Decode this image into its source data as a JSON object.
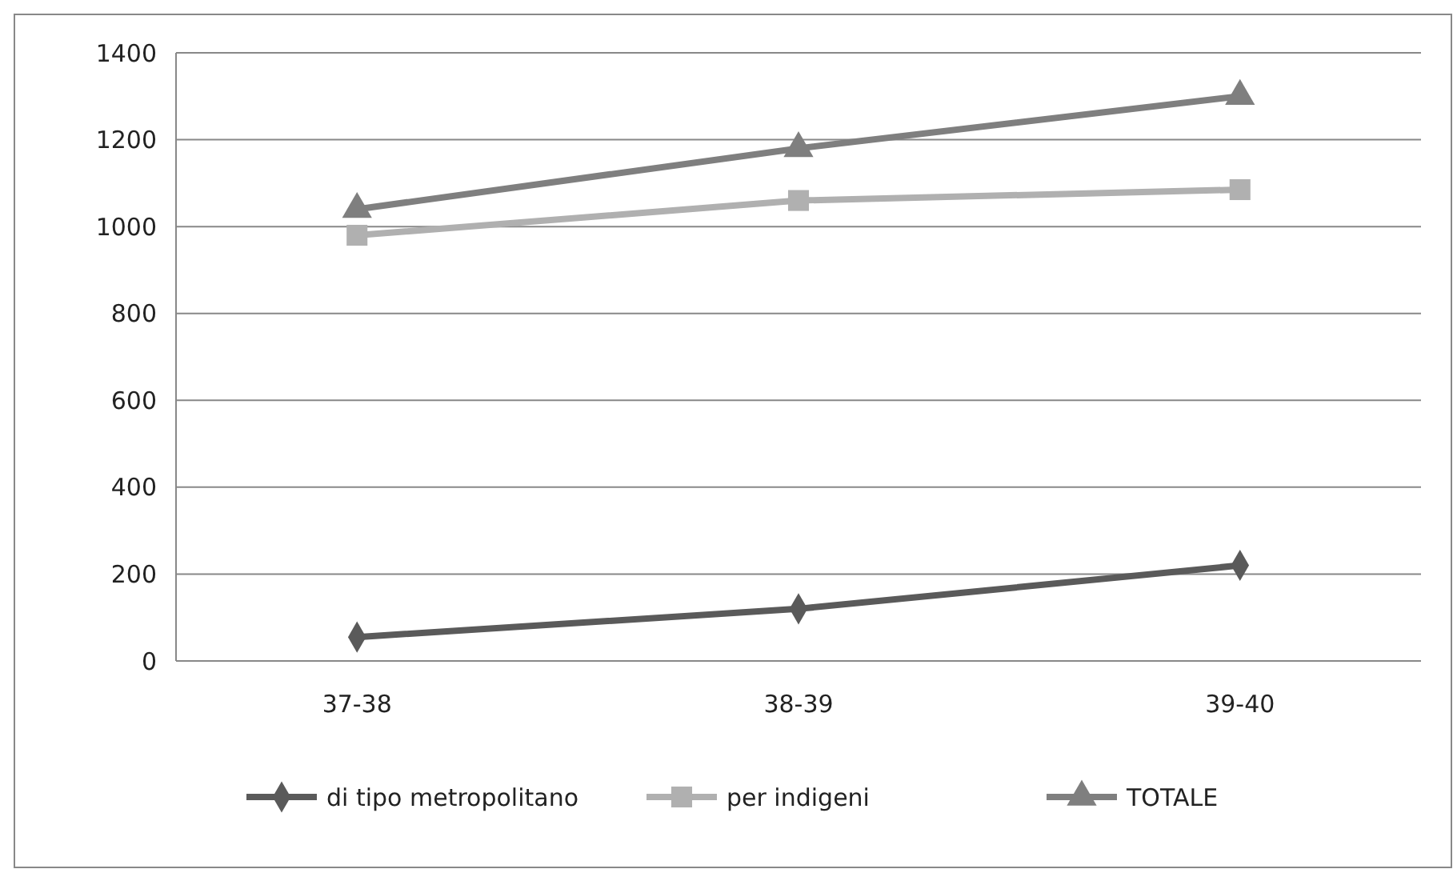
{
  "chart_data": {
    "type": "line",
    "categories": [
      "37-38",
      "38-39",
      "39-40"
    ],
    "series": [
      {
        "name": "di tipo metropolitano",
        "color": "#5a5a5a",
        "marker": "diamond",
        "values": [
          55,
          120,
          220
        ]
      },
      {
        "name": "per indigeni",
        "color": "#b0b0b0",
        "marker": "square",
        "values": [
          980,
          1060,
          1085
        ]
      },
      {
        "name": "TOTALE",
        "color": "#7f7f7f",
        "marker": "triangle",
        "values": [
          1040,
          1180,
          1300
        ]
      }
    ],
    "ylim": [
      0,
      1400
    ],
    "yticks": [
      0,
      200,
      400,
      600,
      800,
      1000,
      1200,
      1400
    ],
    "grid": "y",
    "legend": "bottom"
  }
}
